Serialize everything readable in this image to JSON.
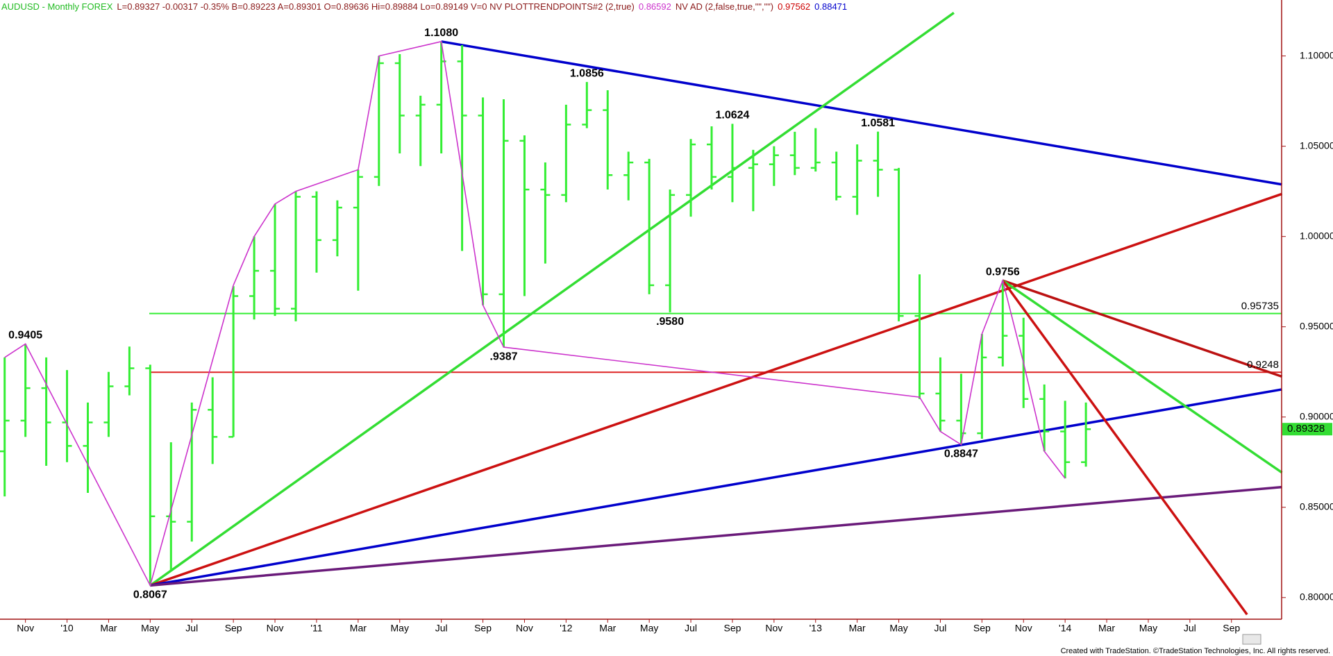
{
  "chart_data": {
    "type": "ohlc",
    "title_parts": [
      {
        "text": "AUDUSD - Monthly FOREX",
        "color": "#22bb22"
      },
      {
        "text": "L=0.89327 -0.00317 -0.35% B=0.89223 A=0.89301 O=0.89636 Hi=0.89884 Lo=0.89149 V=0 NV PLOTTRENDPOINTS#2 (2,true)",
        "color": "#8b1a1a"
      },
      {
        "text": "0.86592",
        "color": "#cc33cc"
      },
      {
        "text": "NV AD (2,false,true,\"\",\"\")",
        "color": "#8b1a1a"
      },
      {
        "text": "0.97562",
        "color": "#cc0000"
      },
      {
        "text": "0.88471",
        "color": "#0000cc"
      }
    ],
    "footer": "Created with TradeStation. ©TradeStation Technologies, Inc. All rights reserved.",
    "categories": [
      null,
      "Nov",
      null,
      "'10",
      null,
      "Mar",
      null,
      "May",
      null,
      "Jul",
      null,
      "Sep",
      null,
      "Nov",
      null,
      "'11",
      null,
      "Mar",
      null,
      "May",
      null,
      "Jul",
      null,
      "Sep",
      null,
      "Nov",
      null,
      "'12",
      null,
      "Mar",
      null,
      "May",
      null,
      "Jul",
      null,
      "Sep",
      null,
      "Nov",
      null,
      "'13",
      null,
      "Mar",
      null,
      "May",
      null,
      "Jul",
      null,
      "Sep",
      null,
      "Nov",
      null,
      "'14",
      null,
      "Mar",
      null,
      "May",
      null,
      "Jul",
      null,
      "Sep",
      null,
      null
    ],
    "color": "#33ee33",
    "open": [
      0.881,
      0.898,
      0.916,
      0.897,
      0.884,
      0.897,
      0.917,
      0.927,
      0.845,
      0.842,
      0.904,
      0.889,
      0.967,
      0.981,
      0.96,
      1.022,
      0.998,
      1.016,
      1.033,
      1.096,
      1.067,
      1.073,
      1.097,
      1.067,
      0.968,
      1.053,
      1.026,
      1.023,
      1.062,
      1.07,
      1.034,
      1.041,
      0.973,
      1.023,
      1.051,
      1.033,
      1.038,
      1.04,
      1.045,
      1.038,
      1.041,
      1.022,
      1.042,
      1.037,
      0.956,
      0.913,
      0.898,
      0.891,
      0.933,
      0.945,
      0.91,
      0.892,
      0.875,
      null,
      null,
      null,
      null,
      null,
      null,
      null,
      null,
      null
    ],
    "high": [
      0.933,
      0.9405,
      0.933,
      0.926,
      0.908,
      0.925,
      0.939,
      0.929,
      0.886,
      0.908,
      0.922,
      0.9725,
      1.0,
      1.018,
      1.025,
      1.025,
      1.02,
      1.037,
      1.1,
      1.101,
      1.078,
      1.108,
      1.106,
      1.077,
      1.076,
      1.056,
      1.041,
      1.073,
      1.0856,
      1.081,
      1.047,
      1.043,
      1.026,
      1.054,
      1.061,
      1.0624,
      1.048,
      1.05,
      1.058,
      1.06,
      1.047,
      1.051,
      1.0581,
      1.038,
      0.979,
      0.933,
      0.924,
      0.946,
      0.9756,
      0.955,
      0.918,
      0.909,
      0.908,
      null,
      null,
      null,
      null,
      null,
      null,
      null,
      null,
      null
    ],
    "low": [
      0.856,
      0.889,
      0.873,
      0.875,
      0.858,
      0.889,
      0.912,
      0.8067,
      0.815,
      0.831,
      0.874,
      0.889,
      0.954,
      0.956,
      0.953,
      0.98,
      0.989,
      0.97,
      1.028,
      1.046,
      1.039,
      1.046,
      0.992,
      0.962,
      0.9387,
      0.967,
      0.985,
      1.019,
      1.06,
      1.026,
      1.02,
      0.968,
      0.958,
      1.011,
      1.026,
      1.019,
      1.014,
      1.028,
      1.034,
      1.036,
      1.02,
      1.012,
      1.022,
      0.953,
      0.91,
      0.892,
      0.8847,
      0.888,
      0.928,
      0.905,
      0.881,
      0.866,
      0.8725,
      null,
      null,
      null,
      null,
      null,
      null,
      null,
      null,
      null
    ],
    "close": [
      0.898,
      0.916,
      0.897,
      0.884,
      0.897,
      0.917,
      0.927,
      0.845,
      0.842,
      0.904,
      0.889,
      0.967,
      0.981,
      0.96,
      1.022,
      0.998,
      1.016,
      1.033,
      1.096,
      1.067,
      1.073,
      1.097,
      1.067,
      0.968,
      1.053,
      1.026,
      1.023,
      1.062,
      1.07,
      1.034,
      1.041,
      0.973,
      1.023,
      1.051,
      1.033,
      1.038,
      1.04,
      1.045,
      1.038,
      1.041,
      1.022,
      1.042,
      1.037,
      0.956,
      0.913,
      0.898,
      0.891,
      0.933,
      0.945,
      0.91,
      0.892,
      0.875,
      0.89327,
      null,
      null,
      null,
      null,
      null,
      null,
      null,
      null,
      null
    ],
    "ylim": [
      0.788,
      1.131
    ],
    "yticks": [
      {
        "value": 0.8,
        "label": "0.80000"
      },
      {
        "value": 0.85,
        "label": "0.85000"
      },
      {
        "value": 0.9,
        "label": "0.90000"
      },
      {
        "value": 0.95,
        "label": "0.95000"
      },
      {
        "value": 1.0,
        "label": "1.00000"
      },
      {
        "value": 1.05,
        "label": "1.05000"
      },
      {
        "value": 1.1,
        "label": "1.10000"
      }
    ],
    "levels": [
      {
        "value": 0.95735,
        "color": "#33ee33"
      },
      {
        "value": 0.9248,
        "color": "#dd2222"
      }
    ],
    "last_price": 0.89328,
    "last_price_color": "#33dd33",
    "trendlines": [
      {
        "color": "#0000cc",
        "x": [
          21,
          61.43
        ],
        "y": [
          1.108,
          1.0288
        ]
      },
      {
        "color": "#33dd33",
        "x": [
          7,
          45.65
        ],
        "y": [
          0.8067,
          1.1239
        ]
      },
      {
        "color": "#cc1111",
        "x": [
          7,
          61.43
        ],
        "y": [
          0.8067,
          1.0236
        ]
      },
      {
        "color": "#0000cc",
        "x": [
          7,
          61.43
        ],
        "y": [
          0.8067,
          0.9153
        ]
      },
      {
        "color": "#6a1b7a",
        "x": [
          7,
          61.43
        ],
        "y": [
          0.8067,
          0.8612
        ]
      },
      {
        "color": "#bb1111",
        "x": [
          48,
          61.43
        ],
        "y": [
          0.9756,
          0.9224
        ]
      },
      {
        "color": "#33dd33",
        "x": [
          48,
          61.43
        ],
        "y": [
          0.9756,
          0.8692
        ]
      },
      {
        "color": "#cc1111",
        "x": [
          48,
          59.75
        ],
        "y": [
          0.9756,
          0.7906
        ]
      }
    ],
    "zigzag": {
      "color": "#cc33cc",
      "x": [
        0,
        1,
        7,
        9,
        11,
        12,
        13,
        14,
        17,
        18,
        21,
        23,
        24,
        44,
        45,
        46,
        47,
        48,
        49,
        50,
        51
      ],
      "y": [
        0.933,
        0.9405,
        0.8067,
        0.89,
        0.973,
        1.0,
        1.018,
        1.025,
        1.037,
        1.1,
        1.108,
        0.962,
        0.9387,
        0.911,
        0.892,
        0.8847,
        0.946,
        0.9756,
        0.93,
        0.881,
        0.866
      ]
    },
    "annotations": [
      {
        "label": "0.9405",
        "x": 1,
        "y": 0.9405,
        "pos": "above"
      },
      {
        "label": "0.8067",
        "x": 7,
        "y": 0.8067,
        "pos": "below"
      },
      {
        "label": "1.1080",
        "x": 21,
        "y": 1.108,
        "pos": "above"
      },
      {
        "label": ".9387",
        "x": 24,
        "y": 0.9387,
        "pos": "below"
      },
      {
        "label": "1.0856",
        "x": 28,
        "y": 1.0856,
        "pos": "above"
      },
      {
        "label": ".9580",
        "x": 32,
        "y": 0.958,
        "pos": "below"
      },
      {
        "label": "1.0624",
        "x": 35,
        "y": 1.0624,
        "pos": "above"
      },
      {
        "label": "1.0581",
        "x": 42,
        "y": 1.0581,
        "pos": "above"
      },
      {
        "label": "0.8847",
        "x": 46,
        "y": 0.8847,
        "pos": "below"
      },
      {
        "label": "0.9756",
        "x": 48,
        "y": 0.9756,
        "pos": "above"
      }
    ]
  }
}
